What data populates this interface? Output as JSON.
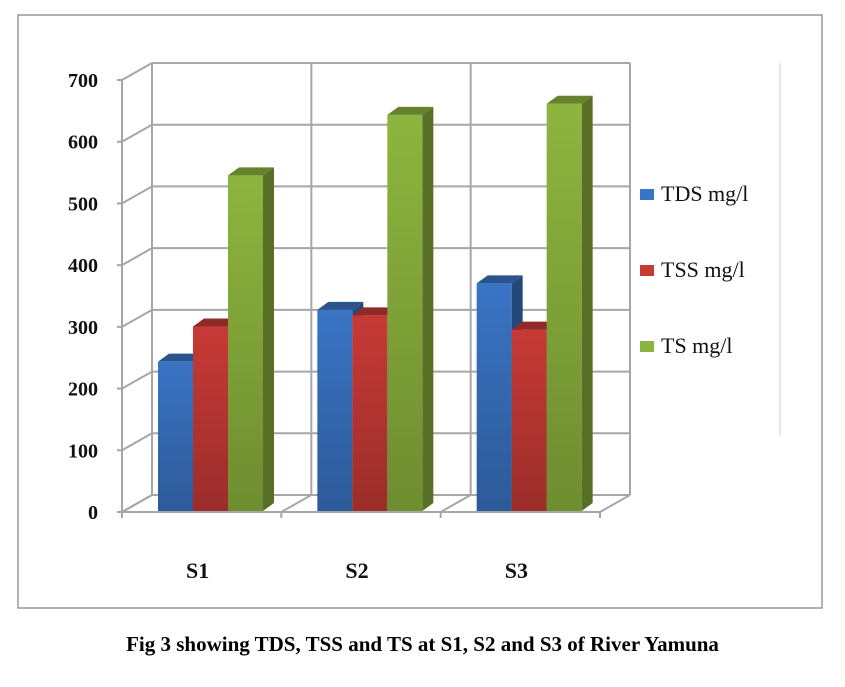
{
  "chart_data": {
    "type": "bar",
    "style": "3d-clustered-column",
    "categories": [
      "S1",
      "S2",
      "S3"
    ],
    "series": [
      {
        "name": "TDS mg/l",
        "values": [
          242,
          326,
          369
        ],
        "color": "#3a74c4"
      },
      {
        "name": "TSS mg/l",
        "values": [
          299,
          317,
          294
        ],
        "color": "#c73a36"
      },
      {
        "name": "TS mg/l",
        "values": [
          544,
          642,
          660
        ],
        "color": "#8db53e"
      }
    ],
    "yticks": [
      0,
      100,
      200,
      300,
      400,
      500,
      600,
      700
    ],
    "ylim": [
      0,
      700
    ],
    "grid": true,
    "legend": "right",
    "title": "",
    "xlabel": "",
    "ylabel": ""
  },
  "caption": "Fig 3 showing TDS, TSS and TS at S1, S2 and S3 of River Yamuna"
}
